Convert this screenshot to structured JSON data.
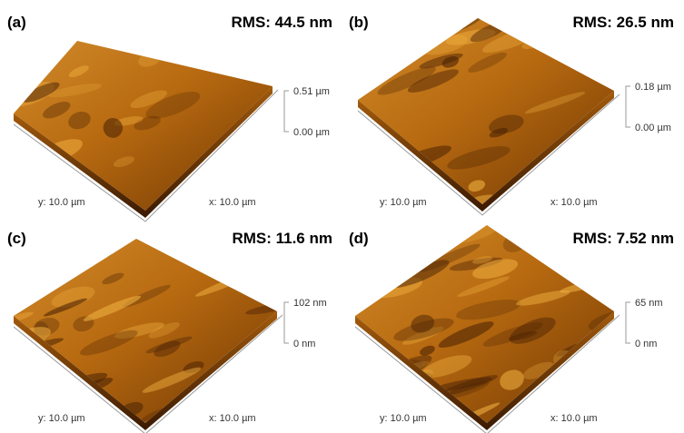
{
  "panels": [
    {
      "label": "(a)",
      "rms": "RMS: 44.5 nm",
      "z_max": "0.51 µm",
      "z_min": "0.00 µm",
      "y_axis": "y: 10.0 µm",
      "x_axis": "x: 10.0 µm"
    },
    {
      "label": "(b)",
      "rms": "RMS: 26.5 nm",
      "z_max": "0.18 µm",
      "z_min": "0.00 µm",
      "y_axis": "y: 10.0 µm",
      "x_axis": "x: 10.0 µm"
    },
    {
      "label": "(c)",
      "rms": "RMS: 11.6 nm",
      "z_max": "102 nm",
      "z_min": "0 nm",
      "y_axis": "y: 10.0 µm",
      "x_axis": "x: 10.0 µm"
    },
    {
      "label": "(d)",
      "rms": "RMS: 7.52 nm",
      "z_max": "65 nm",
      "z_min": "0 nm",
      "y_axis": "y: 10.0 µm",
      "x_axis": "x: 10.0 µm"
    }
  ]
}
